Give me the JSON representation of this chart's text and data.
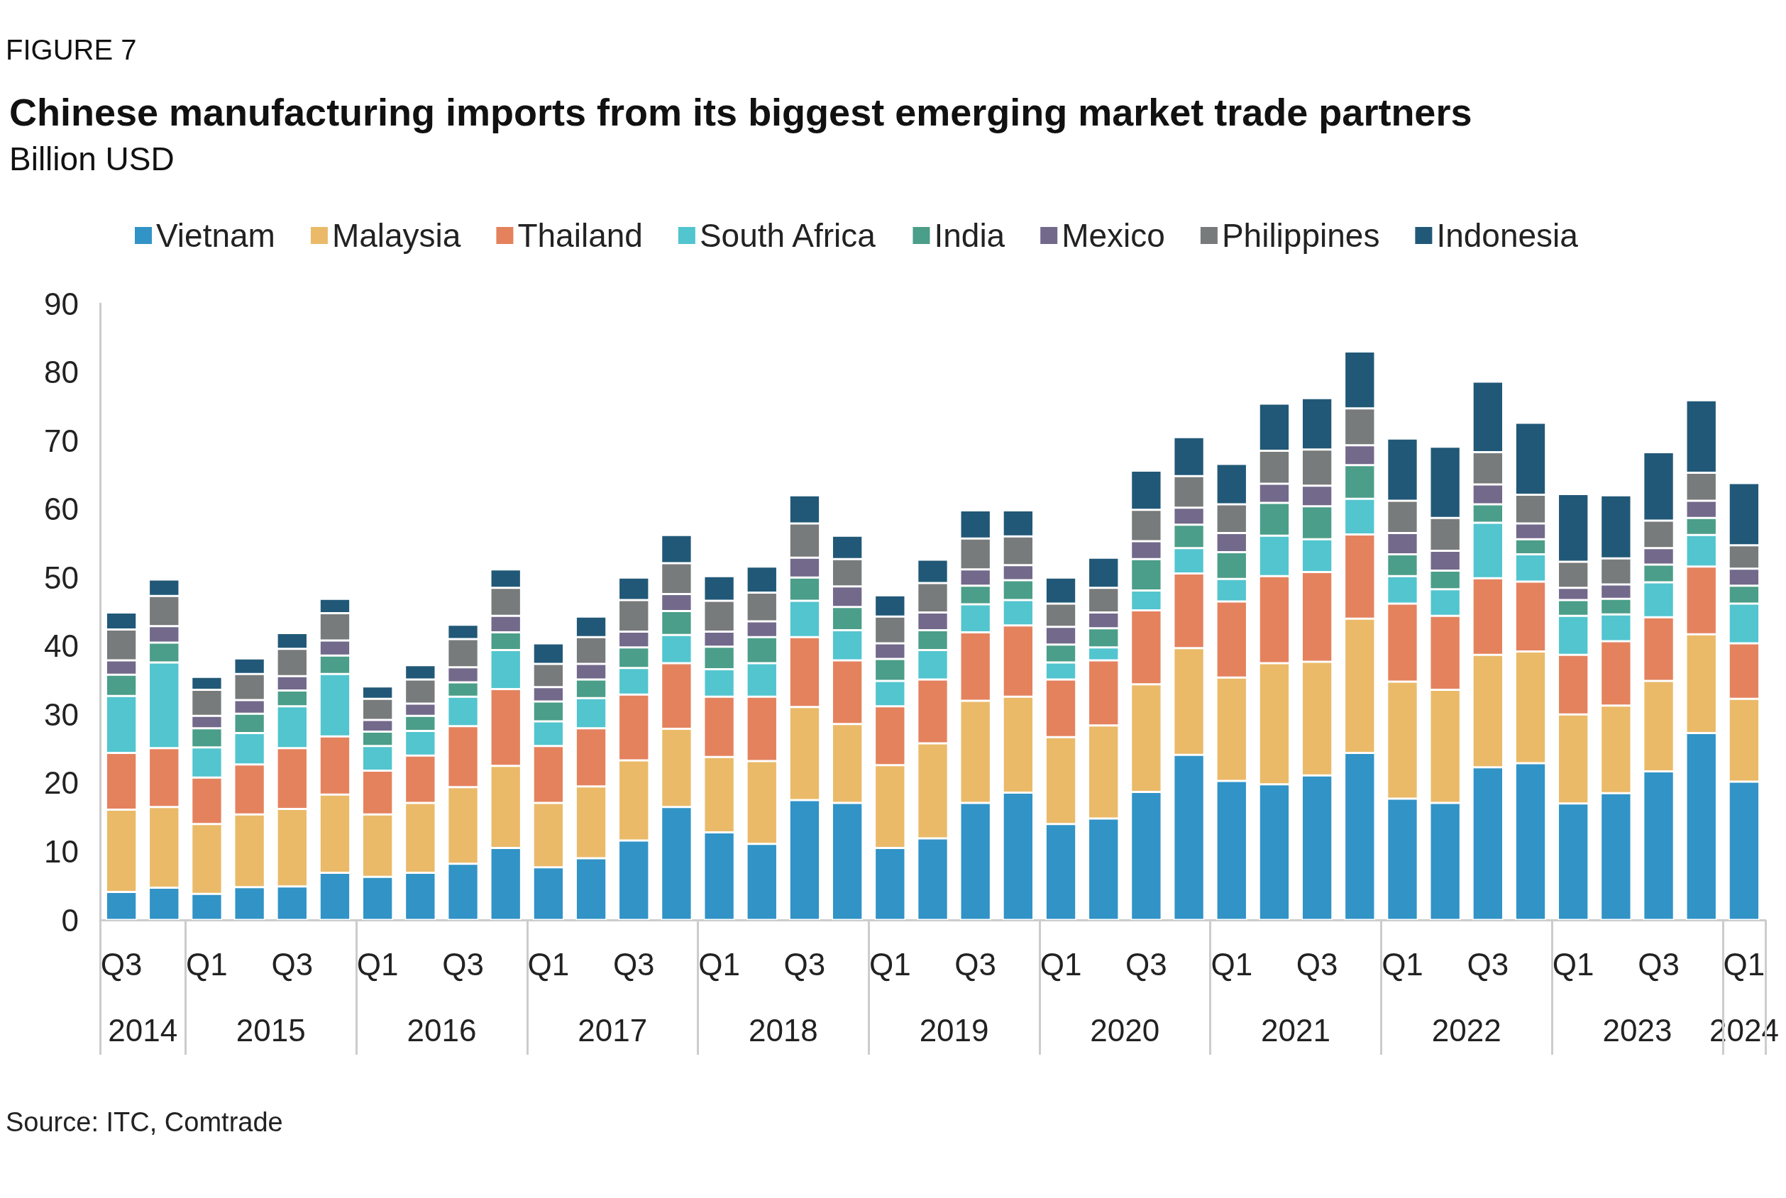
{
  "chart_data": {
    "type": "bar",
    "title": "Chinese manufacturing imports from its biggest emerging market trade partners",
    "subtitle": "Billion USD",
    "annotations": [
      "FIGURE 7",
      "2014",
      "2015",
      "2016",
      "2017",
      "2018",
      "2019",
      "2020",
      "2021",
      "2022",
      "2023",
      "2024",
      "Source: ITC, Comtrade"
    ],
    "categories": [
      "Q3",
      null,
      "Q1",
      null,
      "Q3",
      null,
      "Q1",
      null,
      "Q3",
      null,
      "Q1",
      null,
      "Q3",
      null,
      "Q1",
      null,
      "Q3",
      null,
      "Q1",
      null,
      "Q3",
      null,
      "Q1",
      null,
      "Q3",
      null,
      "Q1",
      null,
      "Q3",
      null,
      "Q1",
      null,
      "Q3",
      null,
      "Q1",
      null,
      "Q3",
      null,
      "Q1"
    ],
    "stacked": true,
    "legend": "top left",
    "ylim": [
      0,
      90
    ],
    "yticks": [
      0,
      10,
      20,
      30,
      40,
      50,
      60,
      70,
      80,
      90
    ],
    "series": [
      {
        "name": "Vietnam",
        "color": "#3193c6",
        "values": [
          4.1,
          4.7,
          3.8,
          4.8,
          4.9,
          6.9,
          6.3,
          6.9,
          8.2,
          10.5,
          7.7,
          9.0,
          11.6,
          16.5,
          12.8,
          11.1,
          17.5,
          17.1,
          10.5,
          11.9,
          17.1,
          18.6,
          14.0,
          14.8,
          18.7,
          24.1,
          20.3,
          19.8,
          21.1,
          24.4,
          17.7,
          17.1,
          22.3,
          22.9,
          17.0,
          18.5,
          21.7,
          27.3,
          20.2
        ]
      },
      {
        "name": "Malaysia",
        "color": "#eaba69",
        "values": [
          12.0,
          11.8,
          10.2,
          10.6,
          11.3,
          11.4,
          9.1,
          10.2,
          11.2,
          12.0,
          9.4,
          10.5,
          11.7,
          11.4,
          11.0,
          12.1,
          13.6,
          11.5,
          12.1,
          13.9,
          14.9,
          14.0,
          12.7,
          13.6,
          15.7,
          15.6,
          15.1,
          17.7,
          16.6,
          19.6,
          17.1,
          16.5,
          16.4,
          16.3,
          13.0,
          12.8,
          13.2,
          14.4,
          12.1
        ]
      },
      {
        "name": "Thailand",
        "color": "#e4825e",
        "values": [
          8.3,
          8.6,
          6.8,
          7.3,
          8.9,
          8.5,
          6.4,
          6.9,
          8.9,
          11.2,
          8.3,
          8.5,
          9.6,
          9.6,
          8.8,
          9.4,
          10.2,
          9.3,
          8.6,
          9.3,
          10.0,
          10.4,
          8.4,
          9.5,
          10.8,
          10.9,
          11.1,
          12.7,
          13.1,
          12.3,
          11.4,
          10.8,
          11.2,
          10.2,
          8.7,
          9.4,
          9.3,
          9.9,
          8.1
        ]
      },
      {
        "name": "South Africa",
        "color": "#52c5cf",
        "values": [
          8.3,
          12.5,
          4.4,
          4.6,
          6.1,
          9.1,
          3.6,
          3.6,
          4.3,
          5.7,
          3.6,
          4.4,
          3.9,
          4.1,
          4.0,
          4.9,
          5.3,
          4.4,
          3.7,
          4.3,
          4.1,
          3.7,
          2.5,
          1.9,
          2.9,
          3.7,
          3.3,
          5.9,
          4.8,
          5.2,
          4.0,
          3.9,
          8.1,
          4.0,
          5.7,
          3.9,
          5.1,
          4.6,
          5.8
        ]
      },
      {
        "name": "India",
        "color": "#4b9e89",
        "values": [
          3.1,
          2.9,
          2.8,
          2.8,
          2.3,
          2.7,
          2.1,
          2.2,
          2.1,
          2.6,
          2.9,
          2.7,
          3.0,
          3.5,
          3.3,
          3.8,
          3.4,
          3.4,
          3.2,
          2.9,
          2.7,
          2.9,
          2.6,
          2.8,
          4.6,
          3.4,
          3.9,
          4.8,
          4.8,
          4.9,
          3.2,
          2.7,
          2.7,
          2.2,
          2.3,
          2.3,
          2.6,
          2.5,
          2.6
        ]
      },
      {
        "name": "Mexico",
        "color": "#72698b",
        "values": [
          2.1,
          2.4,
          1.8,
          2.0,
          2.1,
          2.2,
          1.7,
          1.8,
          2.2,
          2.4,
          2.1,
          2.3,
          2.3,
          2.5,
          2.2,
          2.3,
          2.9,
          3.0,
          2.3,
          2.6,
          2.4,
          2.2,
          2.6,
          2.3,
          2.6,
          2.5,
          2.8,
          2.8,
          3.0,
          2.9,
          3.1,
          2.9,
          2.9,
          2.3,
          1.8,
          2.1,
          2.4,
          2.5,
          2.5
        ]
      },
      {
        "name": "Philippines",
        "color": "#787b7b",
        "values": [
          4.5,
          4.4,
          3.8,
          3.8,
          4.0,
          4.0,
          3.1,
          3.5,
          4.1,
          4.1,
          3.4,
          3.9,
          4.6,
          4.5,
          4.5,
          4.2,
          5.0,
          4.0,
          3.9,
          4.3,
          4.5,
          4.2,
          3.4,
          3.6,
          4.6,
          4.6,
          4.2,
          4.8,
          5.3,
          5.4,
          4.7,
          4.8,
          4.7,
          4.2,
          3.8,
          3.8,
          4.0,
          4.1,
          3.4
        ]
      },
      {
        "name": "Indonesia",
        "color": "#215877",
        "values": [
          2.5,
          2.4,
          1.9,
          2.3,
          2.3,
          2.1,
          1.8,
          2.1,
          2.1,
          2.7,
          3.0,
          3.0,
          3.3,
          4.1,
          3.6,
          3.8,
          4.1,
          3.4,
          3.1,
          3.4,
          4.1,
          3.8,
          3.8,
          4.4,
          5.7,
          5.7,
          5.9,
          6.9,
          7.5,
          8.3,
          9.1,
          10.4,
          10.3,
          10.5,
          9.9,
          9.2,
          10.0,
          10.6,
          9.1
        ]
      }
    ]
  }
}
